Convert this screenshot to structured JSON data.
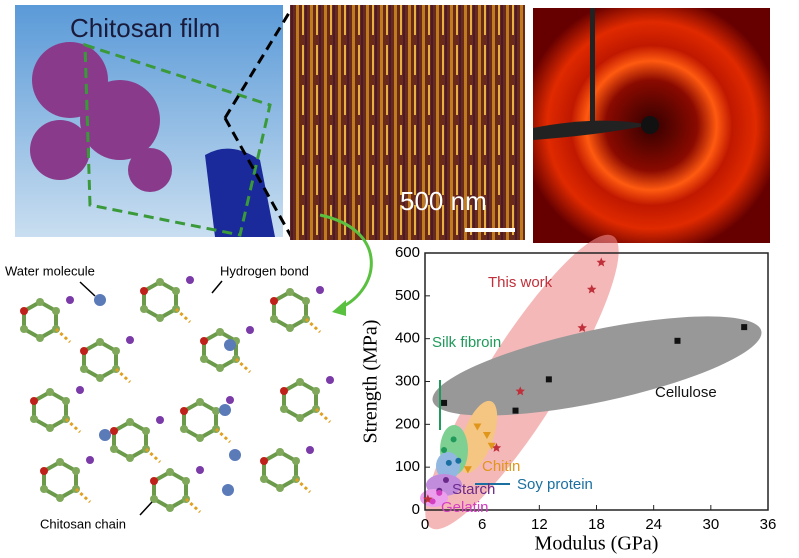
{
  "photo": {
    "title": "Chitosan film",
    "scale_bar": "500 nm"
  },
  "diagram": {
    "water": "Water molecule",
    "hbond": "Hydrogen bond",
    "chain": "Chitosan chain"
  },
  "chart_data": {
    "type": "scatter",
    "xlabel": "Modulus (GPa)",
    "ylabel": "Strength (MPa)",
    "xlim": [
      0,
      36
    ],
    "xticks": [
      0,
      6,
      12,
      18,
      24,
      30,
      36
    ],
    "ylim": [
      0,
      600
    ],
    "yticks": [
      0,
      100,
      200,
      300,
      400,
      500,
      600
    ],
    "series": [
      {
        "name": "Cellulose",
        "color": "#111111",
        "marker": "square",
        "x": [
          2,
          9.5,
          13,
          26.5,
          33.5
        ],
        "values": [
          250,
          232,
          305,
          395,
          427
        ]
      },
      {
        "name": "This work",
        "color": "#c0303a",
        "marker": "star",
        "x": [
          0.3,
          7.5,
          10,
          16.5,
          17.5,
          18.5
        ],
        "values": [
          25,
          145,
          277,
          425,
          515,
          578
        ]
      },
      {
        "name": "Chitin",
        "color": "#e0961a",
        "marker": "triangle",
        "x": [
          4.5,
          5.5,
          6.5,
          7
        ],
        "values": [
          95,
          195,
          175,
          150
        ]
      },
      {
        "name": "Silk fibroin",
        "color": "#1f9a5a",
        "marker": "circle",
        "x": [
          2,
          3
        ],
        "values": [
          140,
          165
        ]
      },
      {
        "name": "Soy protein",
        "color": "#1a6fa0",
        "marker": "circle",
        "x": [
          2.5,
          3.5
        ],
        "values": [
          110,
          115
        ]
      },
      {
        "name": "Starch",
        "color": "#6a2a8a",
        "marker": "circle",
        "x": [
          1.5,
          2.2
        ],
        "values": [
          45,
          70
        ]
      },
      {
        "name": "Gelatin",
        "color": "#d23fc0",
        "marker": "circle",
        "x": [
          0.8,
          1.5
        ],
        "values": [
          20,
          40
        ]
      }
    ]
  }
}
